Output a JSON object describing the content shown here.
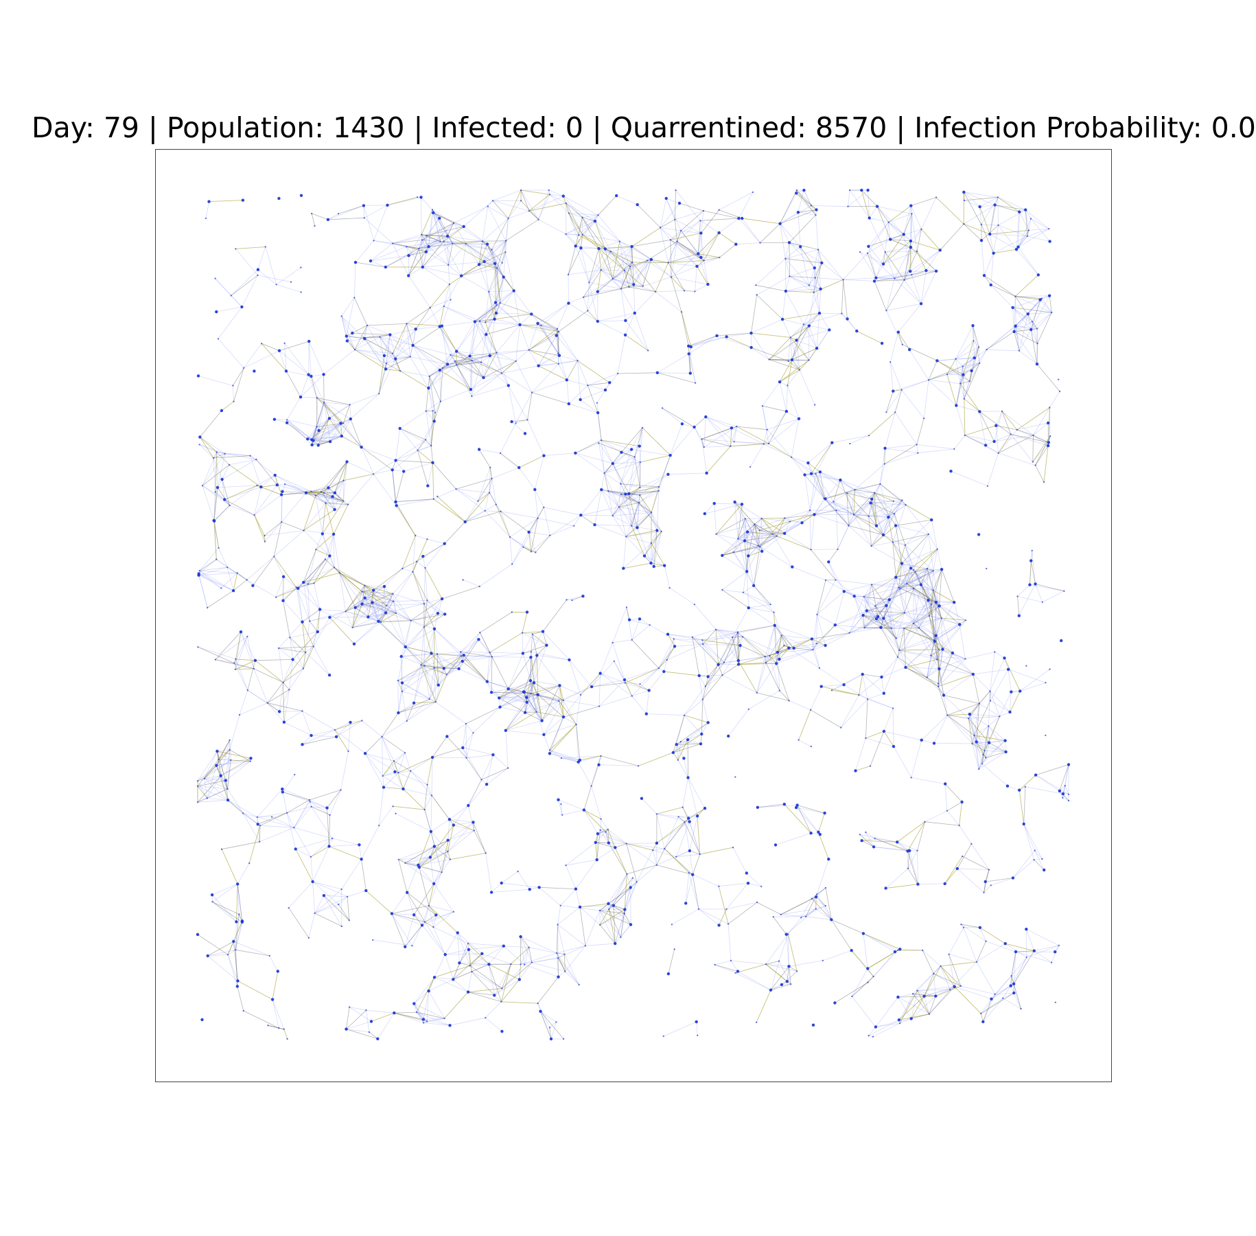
{
  "title": {
    "text": "Day: 79 | Population: 1430 | Infected: 0 | Quarrentined: 8570 | Infection Probability: 0.0"
  },
  "stats": {
    "day": 79,
    "population": 1430,
    "infected": 0,
    "quarantined": 8570,
    "infection_probability": 0.0
  },
  "colors": {
    "node": "#1f3bd6",
    "edge_blue": "#6f7cf2",
    "edge_gray": "#5a5a5a",
    "edge_olive": "#a7a23a",
    "frame": "#444444",
    "background": "#ffffff"
  },
  "network": {
    "description_type": "random geometric contact network",
    "axes_visible": false,
    "edge_types": [
      "blue",
      "gray",
      "olive"
    ]
  }
}
